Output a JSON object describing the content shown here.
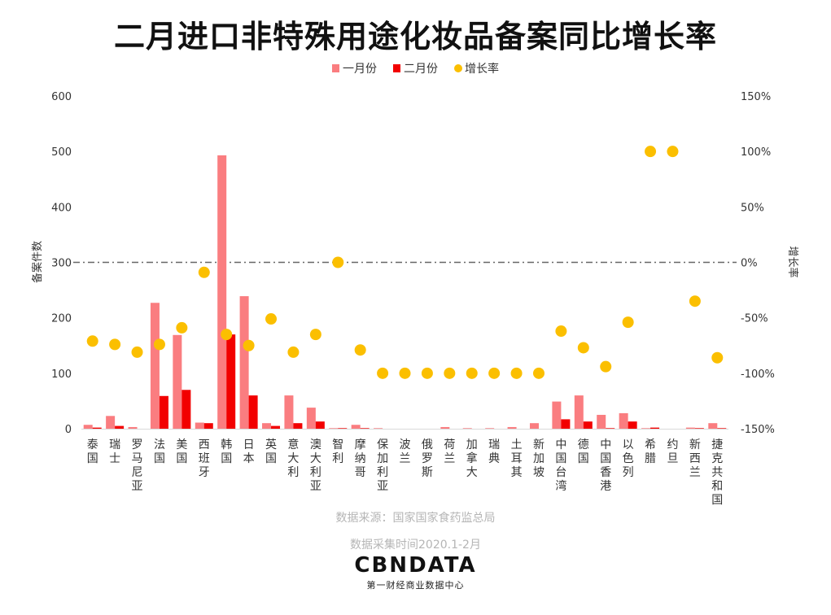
{
  "chart_data": {
    "type": "bar",
    "title": "二月进口非特殊用途化妆品备案同比增长率",
    "ylabel": "备案件数",
    "y2label": "增长率",
    "ylim": [
      0,
      600
    ],
    "y2lim": [
      -150,
      150
    ],
    "yticks": [
      "0",
      "100",
      "200",
      "300",
      "400",
      "500",
      "600"
    ],
    "y2ticks": [
      "-150%",
      "-100%",
      "-50%",
      "0%",
      "50%",
      "100%",
      "150%"
    ],
    "grid": false,
    "reference_line": "0%",
    "legend_position": "top",
    "categories": [
      "泰国",
      "瑞士",
      "罗马尼亚",
      "法国",
      "美国",
      "西班牙",
      "韩国",
      "日本",
      "英国",
      "意大利",
      "澳大利亚",
      "智利",
      "摩纳哥",
      "保加利亚",
      "波兰",
      "俄罗斯",
      "荷兰",
      "加拿大",
      "瑞典",
      "土耳其",
      "新加坡",
      "中国台湾",
      "德国",
      "中国香港",
      "以色列",
      "希腊",
      "约旦",
      "新西兰",
      "捷克共和国"
    ],
    "series": [
      {
        "name": "一月份",
        "type": "bar",
        "color": "#fa7d80",
        "values": [
          7,
          23,
          3,
          227,
          169,
          11,
          493,
          239,
          10,
          60,
          38,
          1,
          7,
          1,
          0,
          0,
          3,
          1,
          1,
          3,
          10,
          49,
          60,
          25,
          28,
          1,
          0,
          2,
          10
        ]
      },
      {
        "name": "二月份",
        "type": "bar",
        "color": "#f20000",
        "values": [
          2,
          5,
          0,
          59,
          70,
          10,
          170,
          60,
          5,
          10,
          13,
          1,
          1,
          0,
          0,
          0,
          0,
          0,
          0,
          0,
          0,
          17,
          13,
          1,
          13,
          2,
          0,
          1,
          1
        ]
      },
      {
        "name": "增长率",
        "type": "scatter",
        "axis": "right",
        "unit": "%",
        "color": "#fbbf00",
        "values": [
          -71,
          -74,
          -81,
          -74,
          -59,
          -9,
          -65,
          -75,
          -51,
          -81,
          -65,
          0,
          -79,
          -100,
          -100,
          -100,
          -100,
          -100,
          -100,
          -100,
          -100,
          -62,
          -77,
          -94,
          -54,
          100,
          100,
          -35,
          -86
        ]
      }
    ]
  },
  "footer": {
    "source": "数据来源：国家国家食药监总局",
    "period": "数据采集时间2020.1-2月",
    "logo": "CBNDATA",
    "logo_sub": "第一财经商业数据中心"
  }
}
